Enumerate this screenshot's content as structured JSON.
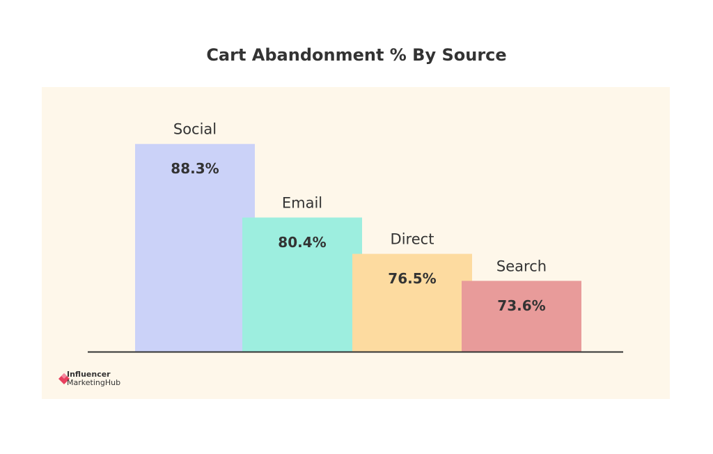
{
  "chart_data": {
    "type": "bar",
    "title": "Cart Abandonment % By Source",
    "categories": [
      "Social",
      "Email",
      "Direct",
      "Search"
    ],
    "values": [
      88.3,
      80.4,
      76.5,
      73.6
    ],
    "value_labels": [
      "88.3%",
      "80.4%",
      "76.5%",
      "73.6%"
    ],
    "colors": [
      "#cbd2f8",
      "#9deedf",
      "#fddba0",
      "#e89b9a"
    ],
    "ylim": [
      66,
      90
    ]
  },
  "logo": {
    "line1": "Influencer",
    "line2": "MarketingHub"
  }
}
